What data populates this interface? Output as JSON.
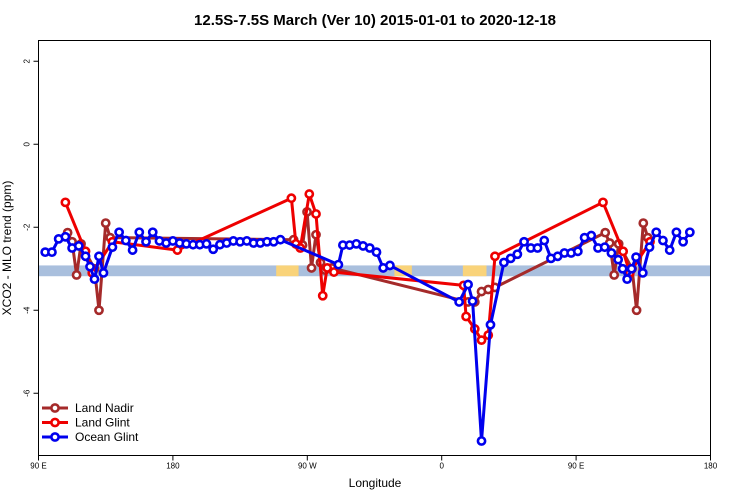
{
  "chart_data": {
    "type": "line",
    "title": "12.5S-7.5S March (Ver 10)   2015-01-01 to 2020-12-18",
    "xlabel": "Longitude",
    "ylabel": "XCO2 - MLO trend (ppm)",
    "xlim": [
      -90,
      180
    ],
    "ylim": [
      -7.5,
      2.5
    ],
    "x_ticks": [
      {
        "value": -90,
        "label": "90 E"
      },
      {
        "value": -36,
        "label": "180"
      },
      {
        "value": 18,
        "label": "90 W"
      },
      {
        "value": 72,
        "label": "0"
      },
      {
        "value": 126,
        "label": "90 E"
      },
      {
        "value": 180,
        "label": "180"
      }
    ],
    "y_ticks": [
      {
        "value": 2,
        "label": "2"
      },
      {
        "value": 0,
        "label": "0"
      },
      {
        "value": -2,
        "label": "-2"
      },
      {
        "value": -4,
        "label": "-4"
      },
      {
        "value": -6,
        "label": "-6"
      }
    ],
    "grid": false,
    "legend_position": "bottom-left",
    "land_band": {
      "y_range": [
        -3.18,
        -2.92
      ],
      "ocean_color": "#a9bfdd",
      "land_color": "#f9d37a",
      "land_segments": [
        [
          5.5,
          14.5
        ],
        [
          53,
          60
        ],
        [
          80.5,
          90
        ]
      ]
    },
    "series": [
      {
        "name": "Land Nadir",
        "color": "#a52a2a",
        "points": [
          [
            -78.3,
            -2.13
          ],
          [
            -76.5,
            -2.35
          ],
          [
            -74.7,
            -3.15
          ],
          [
            -72.9,
            -2.4
          ],
          [
            -67.5,
            -3.0
          ],
          [
            -65.7,
            -4.0
          ],
          [
            -63.0,
            -1.9
          ],
          [
            -61.2,
            -2.25
          ],
          [
            12.5,
            -2.3
          ],
          [
            14.3,
            -2.43
          ],
          [
            16.1,
            -2.43
          ],
          [
            17.9,
            -1.63
          ],
          [
            19.7,
            -2.98
          ],
          [
            21.5,
            -2.18
          ],
          [
            23.3,
            -2.85
          ],
          [
            25.1,
            -3.03
          ],
          [
            27.8,
            -2.98
          ],
          [
            82.6,
            -3.8
          ],
          [
            85.3,
            -3.8
          ],
          [
            88.0,
            -3.55
          ],
          [
            90.7,
            -3.5
          ],
          [
            93.4,
            -3.45
          ],
          [
            137.7,
            -2.13
          ],
          [
            139.5,
            -2.38
          ],
          [
            141.3,
            -3.15
          ],
          [
            143.1,
            -2.4
          ],
          [
            148.5,
            -3.0
          ],
          [
            150.3,
            -4.0
          ],
          [
            153.0,
            -1.9
          ],
          [
            154.8,
            -2.25
          ]
        ]
      },
      {
        "name": "Land Glint",
        "color": "#ee0000",
        "points": [
          [
            -79.2,
            -1.4
          ],
          [
            -71.1,
            -2.58
          ],
          [
            -68.4,
            -3.1
          ],
          [
            -60.3,
            -2.35
          ],
          [
            -34.2,
            -2.55
          ],
          [
            11.6,
            -1.3
          ],
          [
            13.4,
            -2.4
          ],
          [
            15.2,
            -2.5
          ],
          [
            18.8,
            -1.2
          ],
          [
            21.5,
            -1.68
          ],
          [
            24.2,
            -3.65
          ],
          [
            26.0,
            -2.98
          ],
          [
            28.7,
            -3.08
          ],
          [
            80.8,
            -3.4
          ],
          [
            81.8,
            -4.15
          ],
          [
            85.3,
            -4.45
          ],
          [
            88.0,
            -4.72
          ],
          [
            90.7,
            -4.6
          ],
          [
            93.4,
            -2.7
          ],
          [
            136.8,
            -1.4
          ],
          [
            144.9,
            -2.58
          ],
          [
            147.6,
            -3.1
          ],
          [
            155.7,
            -2.35
          ]
        ]
      },
      {
        "name": "Ocean Glint",
        "color": "#0000ee",
        "points": [
          [
            -87.3,
            -2.6
          ],
          [
            -84.6,
            -2.6
          ],
          [
            -81.9,
            -2.28
          ],
          [
            -79.2,
            -2.23
          ],
          [
            -76.5,
            -2.5
          ],
          [
            -73.8,
            -2.45
          ],
          [
            -71.1,
            -2.7
          ],
          [
            -69.3,
            -2.95
          ],
          [
            -67.5,
            -3.25
          ],
          [
            -65.7,
            -2.7
          ],
          [
            -63.9,
            -3.1
          ],
          [
            -60.3,
            -2.48
          ],
          [
            -57.6,
            -2.12
          ],
          [
            -54.9,
            -2.32
          ],
          [
            -52.2,
            -2.55
          ],
          [
            -49.5,
            -2.12
          ],
          [
            -46.8,
            -2.35
          ],
          [
            -44.1,
            -2.12
          ],
          [
            -41.4,
            -2.33
          ],
          [
            -38.7,
            -2.38
          ],
          [
            -36.0,
            -2.33
          ],
          [
            -33.3,
            -2.38
          ],
          [
            -30.6,
            -2.4
          ],
          [
            -27.9,
            -2.42
          ],
          [
            -25.2,
            -2.42
          ],
          [
            -22.5,
            -2.4
          ],
          [
            -19.8,
            -2.53
          ],
          [
            -17.1,
            -2.42
          ],
          [
            -14.4,
            -2.38
          ],
          [
            -11.7,
            -2.33
          ],
          [
            -9.0,
            -2.35
          ],
          [
            -6.3,
            -2.33
          ],
          [
            -3.6,
            -2.38
          ],
          [
            -0.9,
            -2.38
          ],
          [
            1.8,
            -2.35
          ],
          [
            4.5,
            -2.35
          ],
          [
            7.2,
            -2.3
          ],
          [
            30.5,
            -2.9
          ],
          [
            32.3,
            -2.43
          ],
          [
            35.0,
            -2.43
          ],
          [
            37.7,
            -2.4
          ],
          [
            40.4,
            -2.45
          ],
          [
            43.1,
            -2.5
          ],
          [
            45.8,
            -2.6
          ],
          [
            48.5,
            -2.98
          ],
          [
            51.2,
            -2.92
          ],
          [
            79.0,
            -3.8
          ],
          [
            82.6,
            -3.38
          ],
          [
            84.4,
            -3.78
          ],
          [
            88.0,
            -7.15
          ],
          [
            91.6,
            -4.35
          ],
          [
            97.0,
            -2.85
          ],
          [
            99.7,
            -2.75
          ],
          [
            102.4,
            -2.65
          ],
          [
            105.1,
            -2.35
          ],
          [
            107.8,
            -2.5
          ],
          [
            110.5,
            -2.5
          ],
          [
            113.2,
            -2.32
          ],
          [
            115.9,
            -2.75
          ],
          [
            118.6,
            -2.7
          ],
          [
            121.3,
            -2.62
          ],
          [
            124.0,
            -2.62
          ],
          [
            126.7,
            -2.58
          ],
          [
            129.4,
            -2.25
          ],
          [
            132.1,
            -2.2
          ],
          [
            134.8,
            -2.5
          ],
          [
            137.5,
            -2.48
          ],
          [
            140.2,
            -2.62
          ],
          [
            142.9,
            -2.78
          ],
          [
            144.7,
            -3.0
          ],
          [
            146.5,
            -3.25
          ],
          [
            148.3,
            -3.0
          ],
          [
            150.1,
            -2.72
          ],
          [
            152.8,
            -3.1
          ],
          [
            155.5,
            -2.48
          ],
          [
            158.2,
            -2.12
          ],
          [
            160.9,
            -2.32
          ],
          [
            163.6,
            -2.55
          ],
          [
            166.3,
            -2.12
          ],
          [
            169.0,
            -2.35
          ],
          [
            171.7,
            -2.12
          ]
        ]
      }
    ]
  }
}
